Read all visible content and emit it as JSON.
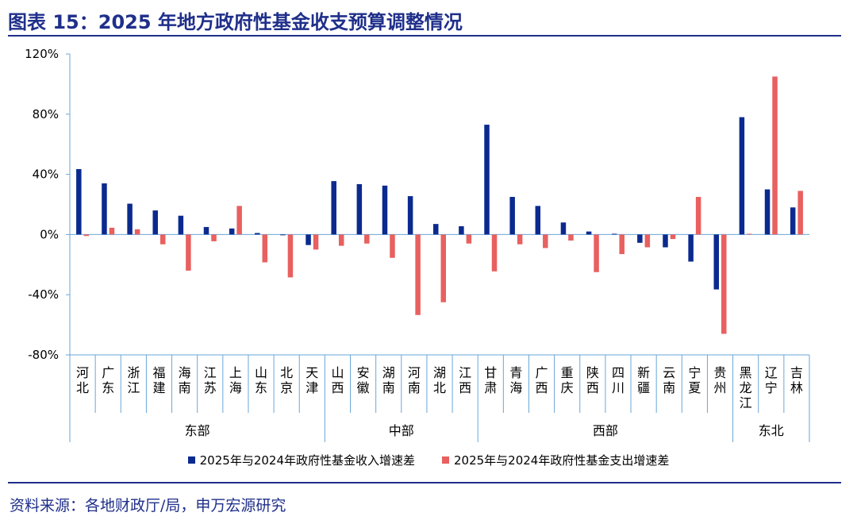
{
  "header": {
    "title": "图表 15：2025 年地方政府性基金收支预算调整情况"
  },
  "footer": {
    "source": "资料来源：各地财政厅/局，申万宏源研究"
  },
  "colors": {
    "income": "#0b2a8f",
    "expense": "#e8605f",
    "axis": "#6aa6d8",
    "brand": "#1f2f8a"
  },
  "chart_data": {
    "type": "bar",
    "title": "",
    "xlabel": "",
    "ylabel": "",
    "ylim": [
      -80,
      120
    ],
    "y_ticks": [
      "120%",
      "80%",
      "40%",
      "0%",
      "-40%",
      "-80%"
    ],
    "y_tick_values": [
      120,
      80,
      40,
      0,
      -40,
      -80
    ],
    "categories": [
      "河北",
      "广东",
      "浙江",
      "福建",
      "海南",
      "江苏",
      "上海",
      "山东",
      "北京",
      "天津",
      "山西",
      "安徽",
      "湖南",
      "河南",
      "湖北",
      "江西",
      "甘肃",
      "青海",
      "广西",
      "重庆",
      "陕西",
      "四川",
      "新疆",
      "云南",
      "宁夏",
      "贵州",
      "黑龙江",
      "辽宁",
      "吉林"
    ],
    "groups": [
      {
        "name": "东部",
        "count": 10
      },
      {
        "name": "中部",
        "count": 6
      },
      {
        "name": "西部",
        "count": 10
      },
      {
        "name": "东北",
        "count": 3
      }
    ],
    "series": [
      {
        "name": "2025年与2024年政府性基金收入增速差",
        "values": [
          43.5,
          34,
          20.5,
          16,
          12.5,
          5,
          4,
          1,
          -0.5,
          -7,
          35.5,
          33.5,
          32.5,
          25.5,
          7,
          5.5,
          73,
          25,
          19,
          8,
          2,
          0.5,
          -5.5,
          -8.5,
          -18,
          -36.5,
          78,
          30,
          18
        ]
      },
      {
        "name": "2025年与2024年政府性基金支出增速差",
        "values": [
          -1,
          4.5,
          3.5,
          -6.5,
          -24,
          -4.5,
          19,
          -18.5,
          -28.5,
          -10,
          -7.5,
          -6,
          -15.5,
          -53.5,
          -45,
          -6,
          -24.5,
          -6.5,
          -9,
          -4,
          -25,
          -13,
          -8.5,
          -3,
          25,
          -66,
          0.5,
          105,
          29
        ]
      }
    ],
    "legend_position": "bottom",
    "grid": false
  }
}
